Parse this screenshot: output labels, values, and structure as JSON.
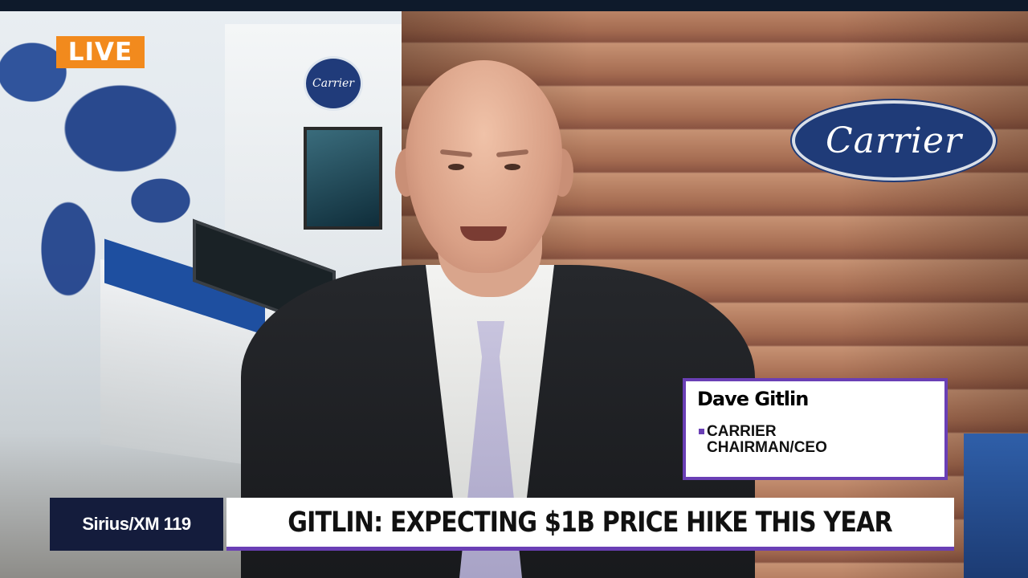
{
  "live_badge": {
    "label": "LIVE",
    "color": "#F28A1D"
  },
  "scene": {
    "wall_logo_text": "Carrier",
    "small_logo_text": "Carrier"
  },
  "lower_third": {
    "name": "Dave Gitlin",
    "title_line1": "CARRIER",
    "title_line2": "CHAIRMAN/CEO",
    "accent_color": "#6A3FB5"
  },
  "channel": {
    "label": "Sirius/XM 119",
    "background": "#141C3C"
  },
  "headline": {
    "text": "GITLIN: EXPECTING $1B PRICE HIKE THIS YEAR"
  }
}
